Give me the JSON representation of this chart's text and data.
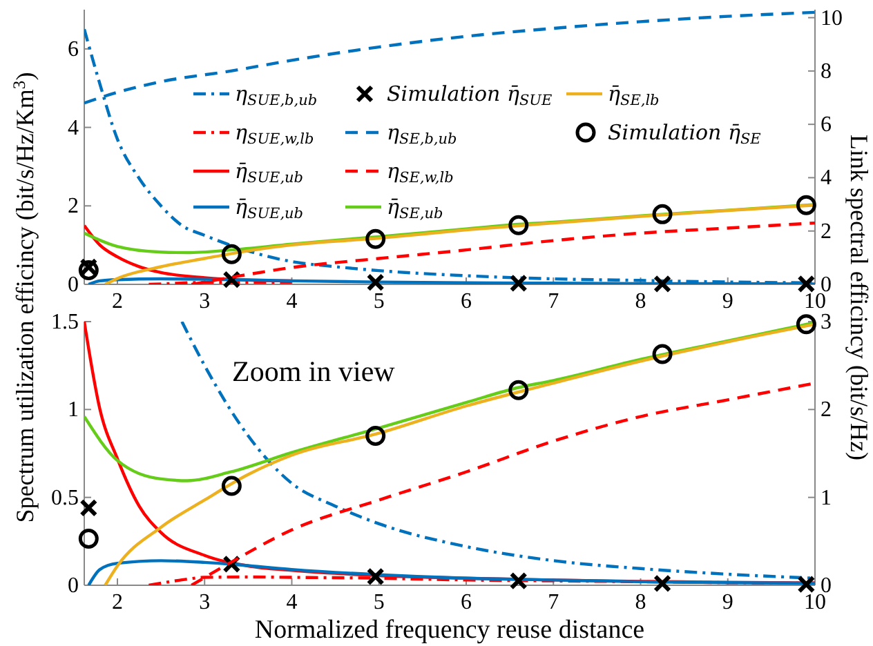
{
  "chart_data": [
    {
      "type": "line",
      "xlim": [
        1.62,
        10
      ],
      "xticks": [
        2,
        3,
        4,
        5,
        6,
        7,
        8,
        9,
        10
      ],
      "ylim": [
        0,
        7
      ],
      "yticks": [
        0,
        2,
        4,
        6
      ],
      "y2lim": [
        0,
        10.3
      ],
      "y2ticks": [
        0,
        2,
        4,
        6,
        8,
        10
      ],
      "ylabel": "Spectrum utilization efficincy (bit/s/Hz/Km$^{3}$)",
      "y2label": "Link spectral efficincy (bit/s/Hz)",
      "legend": "center",
      "series": [
        {
          "name": "η$_{SUE,b,ub}$",
          "color": "#0072bd",
          "line_style": "dashdot",
          "x": [
            1.62,
            1.8,
            2,
            2.25,
            2.5,
            2.74,
            3,
            3.5,
            4,
            4.5,
            5,
            6,
            7,
            8,
            9,
            10
          ],
          "values": [
            6.5,
            5.1,
            3.7,
            2.7,
            2.0,
            1.5,
            1.25,
            0.85,
            0.58,
            0.45,
            0.35,
            0.22,
            0.14,
            0.1,
            0.06,
            0.04
          ]
        },
        {
          "name": "η$_{SUE,w,lb}$",
          "color": "#ff0000",
          "line_style": "dashdot",
          "x": [
            2.36,
            2.6,
            2.8,
            3,
            3.5,
            4
          ],
          "values": [
            0,
            0.02,
            0.04,
            0.05,
            0.05,
            0.05
          ]
        },
        {
          "name": "η̄$_{SUE,ub}$",
          "color": "#ff0000",
          "line_style": "solid",
          "x": [
            1.62,
            1.8,
            2,
            2.25,
            2.5,
            3,
            3.5,
            4
          ],
          "values": [
            1.5,
            1.0,
            0.7,
            0.45,
            0.3,
            0.17,
            0.11,
            0.09
          ]
        },
        {
          "name": "η̄$_{SUE,ub}$",
          "color": "#0072bd",
          "line_style": "solid",
          "x": [
            1.67,
            1.8,
            2,
            2.5,
            3,
            3.3,
            4,
            5,
            6,
            7,
            8,
            9,
            10
          ],
          "values": [
            0,
            0.09,
            0.12,
            0.14,
            0.13,
            0.12,
            0.09,
            0.06,
            0.04,
            0.03,
            0.02,
            0.02,
            0.01
          ]
        },
        {
          "name": "Simulation η̄$_{SUE}$",
          "type": "scatter",
          "marker": "cross",
          "color": "#000000",
          "x": [
            1.67,
            3.31,
            4.96,
            6.6,
            8.25,
            9.9
          ],
          "values": [
            0.44,
            0.12,
            0.05,
            0.03,
            0.01,
            0.01
          ]
        },
        {
          "name": "η$_{SE,b,ub}$",
          "color": "#0072bd",
          "line_style": "dashed",
          "axis": "y2",
          "x": [
            1.62,
            2,
            2.5,
            3.3,
            4,
            5,
            6,
            7,
            8,
            9,
            10
          ],
          "values": [
            6.8,
            7.2,
            7.6,
            8.0,
            8.4,
            8.9,
            9.3,
            9.6,
            9.85,
            10.05,
            10.2
          ]
        },
        {
          "name": "η$_{SE,w,lb}$",
          "color": "#ff0000",
          "line_style": "dashed",
          "axis": "y2",
          "x": [
            2.85,
            3.3,
            4,
            5,
            6,
            7,
            8,
            9,
            10
          ],
          "values": [
            0,
            0.26,
            0.63,
            0.97,
            1.29,
            1.64,
            1.92,
            2.11,
            2.3
          ]
        },
        {
          "name": "η̄$_{SE,ub}$",
          "color": "#66cc1a",
          "line_style": "solid",
          "axis": "y2",
          "x": [
            1.62,
            2,
            2.5,
            2.8,
            3.3,
            4,
            5,
            6,
            6.6,
            7,
            8,
            9,
            10
          ],
          "values": [
            1.92,
            1.42,
            1.21,
            1.19,
            1.29,
            1.51,
            1.79,
            2.08,
            2.25,
            2.33,
            2.57,
            2.78,
            2.99
          ]
        },
        {
          "name": "η̄$_{SE,lb}$",
          "color": "#edb120",
          "line_style": "solid",
          "axis": "y2",
          "x": [
            1.86,
            2,
            2.5,
            3,
            3.5,
            4,
            5,
            6,
            7,
            8,
            9,
            10
          ],
          "values": [
            0,
            0.22,
            0.66,
            0.97,
            1.26,
            1.48,
            1.73,
            2.04,
            2.3,
            2.55,
            2.77,
            2.97
          ]
        },
        {
          "name": "Simulation η̄$_{SE}$",
          "type": "scatter",
          "marker": "circle",
          "color": "#000000",
          "axis": "y2",
          "x": [
            1.67,
            3.31,
            4.96,
            6.6,
            8.25,
            9.9
          ],
          "values": [
            0.53,
            1.13,
            1.7,
            2.22,
            2.63,
            2.97
          ]
        }
      ]
    },
    {
      "type": "line",
      "xlim": [
        1.62,
        10
      ],
      "xticks": [
        2,
        3,
        4,
        5,
        6,
        7,
        8,
        9,
        10
      ],
      "ylim": [
        0,
        1.5
      ],
      "yticks": [
        0,
        0.5,
        1,
        1.5
      ],
      "y2lim": [
        0,
        3
      ],
      "y2ticks": [
        0,
        1,
        2,
        3
      ],
      "xlabel": "Normalized frequency reuse distance",
      "annotations": [
        "Zoom in view"
      ],
      "series": [
        {
          "color": "#0072bd",
          "line_style": "dashdot",
          "x": [
            2.74,
            3,
            3.5,
            4,
            4.5,
            5,
            6,
            7,
            8,
            9,
            10
          ],
          "values": [
            1.5,
            1.25,
            0.85,
            0.58,
            0.45,
            0.35,
            0.22,
            0.14,
            0.095,
            0.063,
            0.04
          ]
        },
        {
          "color": "#ff0000",
          "line_style": "dashdot",
          "x": [
            2.36,
            2.6,
            2.8,
            3,
            3.5,
            4,
            5,
            6,
            7,
            8,
            9,
            10
          ],
          "values": [
            0,
            0.02,
            0.035,
            0.045,
            0.047,
            0.045,
            0.04,
            0.03,
            0.025,
            0.02,
            0.015,
            0.012
          ]
        },
        {
          "color": "#ff0000",
          "line_style": "solid",
          "x": [
            1.62,
            1.8,
            2,
            2.25,
            2.5,
            3,
            3.5,
            4,
            5,
            6,
            7,
            8,
            9,
            10
          ],
          "values": [
            1.5,
            1.0,
            0.72,
            0.45,
            0.3,
            0.17,
            0.11,
            0.085,
            0.055,
            0.04,
            0.03,
            0.022,
            0.017,
            0.013
          ]
        },
        {
          "color": "#0072bd",
          "line_style": "solid",
          "x": [
            1.67,
            1.8,
            2,
            2.5,
            3,
            3.3,
            4,
            5,
            6,
            7,
            8,
            9,
            10
          ],
          "values": [
            0,
            0.09,
            0.125,
            0.14,
            0.13,
            0.12,
            0.09,
            0.06,
            0.04,
            0.03,
            0.02,
            0.015,
            0.012
          ]
        },
        {
          "type": "scatter",
          "marker": "cross",
          "color": "#000000",
          "x": [
            1.67,
            3.31,
            4.96,
            6.6,
            8.25,
            9.9
          ],
          "values": [
            0.44,
            0.12,
            0.05,
            0.025,
            0.01,
            0.005
          ]
        },
        {
          "color": "#ff0000",
          "line_style": "dashed",
          "axis": "y2",
          "x": [
            2.85,
            3.3,
            4,
            5,
            6,
            7,
            8,
            9,
            10
          ],
          "values": [
            0,
            0.26,
            0.63,
            0.97,
            1.29,
            1.64,
            1.92,
            2.11,
            2.3
          ]
        },
        {
          "color": "#66cc1a",
          "line_style": "solid",
          "axis": "y2",
          "x": [
            1.62,
            2,
            2.5,
            2.8,
            3.3,
            4,
            5,
            6,
            6.6,
            7,
            8,
            9,
            10
          ],
          "values": [
            1.92,
            1.42,
            1.21,
            1.19,
            1.29,
            1.51,
            1.79,
            2.08,
            2.25,
            2.33,
            2.57,
            2.78,
            2.99
          ]
        },
        {
          "color": "#edb120",
          "line_style": "solid",
          "axis": "y2",
          "x": [
            1.86,
            2,
            2.5,
            3,
            3.5,
            4,
            5,
            6,
            7,
            8,
            9,
            10
          ],
          "values": [
            0,
            0.22,
            0.66,
            0.97,
            1.26,
            1.48,
            1.73,
            2.04,
            2.3,
            2.55,
            2.77,
            2.97
          ]
        },
        {
          "type": "scatter",
          "marker": "circle",
          "color": "#000000",
          "axis": "y2",
          "x": [
            1.67,
            3.31,
            4.96,
            6.6,
            8.25,
            9.9
          ],
          "values": [
            0.53,
            1.13,
            1.7,
            2.22,
            2.63,
            2.97
          ]
        }
      ]
    }
  ]
}
